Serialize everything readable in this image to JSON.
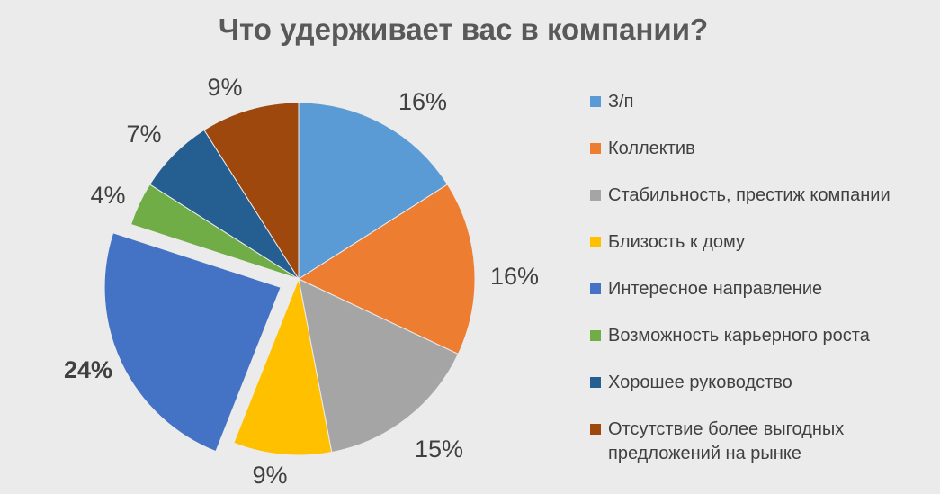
{
  "chart_data": {
    "type": "pie",
    "title": "Что удерживает вас в компании?",
    "slices": [
      {
        "name": "З/п",
        "value": 16,
        "label": "16%",
        "color": "#5b9bd5",
        "exploded": false
      },
      {
        "name": "Коллектив",
        "value": 16,
        "label": "16%",
        "color": "#ed7d31",
        "exploded": false
      },
      {
        "name": "Стабильность, престиж компании",
        "value": 15,
        "label": "15%",
        "color": "#a5a5a5",
        "exploded": false
      },
      {
        "name": "Близость к дому",
        "value": 9,
        "label": "9%",
        "color": "#ffc000",
        "exploded": false
      },
      {
        "name": "Интересное направление",
        "value": 24,
        "label": "24%",
        "color": "#4472c4",
        "exploded": true
      },
      {
        "name": "Возможность карьерного роста",
        "value": 4,
        "label": "4%",
        "color": "#70ad47",
        "exploded": false
      },
      {
        "name": "Хорошее руководство",
        "value": 7,
        "label": "7%",
        "color": "#255e91",
        "exploded": false
      },
      {
        "name": "Отсутствие более выгодных предложений на рынке",
        "value": 9,
        "label": "9%",
        "color": "#9e480e",
        "exploded": false
      }
    ],
    "legend_position": "right"
  },
  "legend": {
    "items": [
      {
        "label": "З/п"
      },
      {
        "label": "Коллектив"
      },
      {
        "label": "Стабильность, престиж компании"
      },
      {
        "label": "Близость к дому"
      },
      {
        "label": "Интересное направление"
      },
      {
        "label": "Возможность карьерного роста"
      },
      {
        "label": "Хорошее руководство"
      },
      {
        "label": "Отсутствие более выгодных\nпредложений на рынке"
      }
    ]
  }
}
